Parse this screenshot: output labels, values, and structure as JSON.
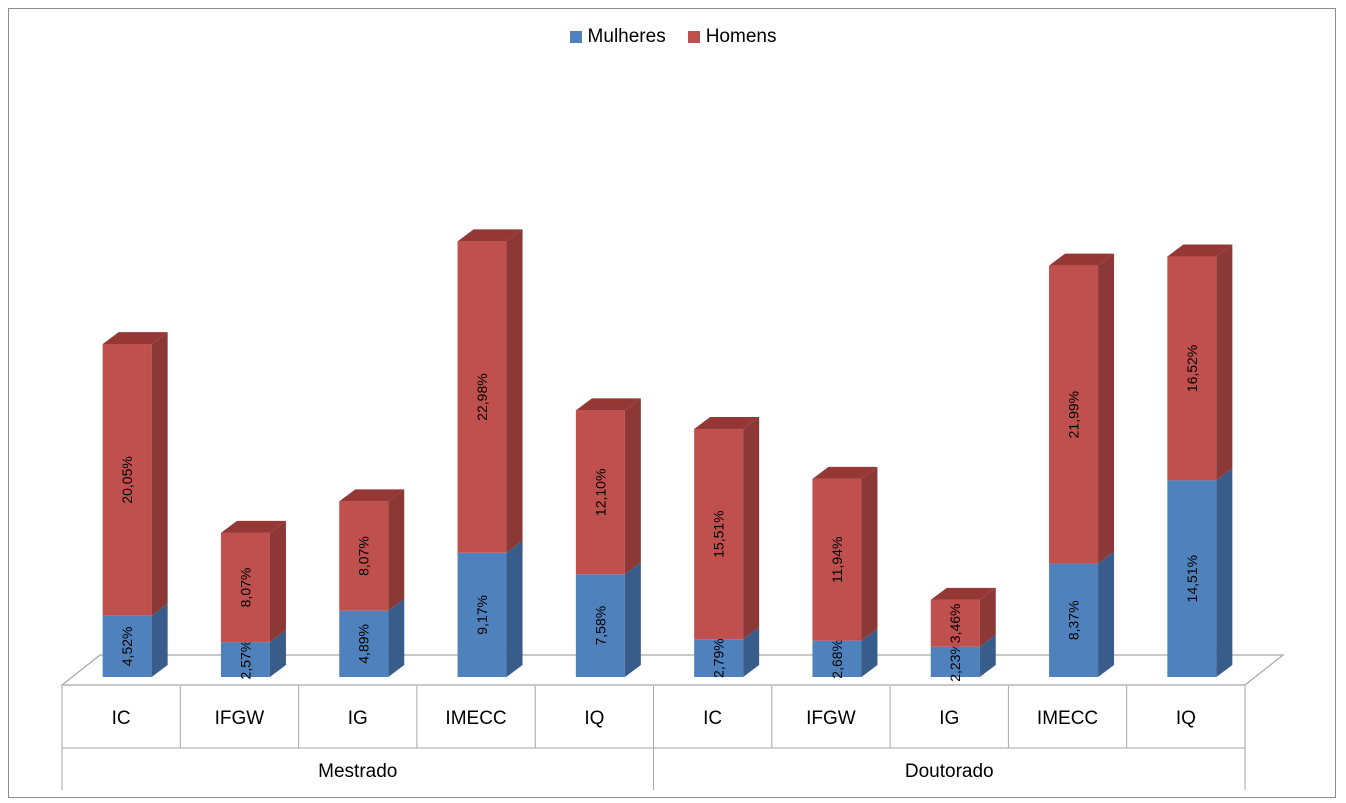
{
  "chart_data": {
    "type": "bar",
    "stacked": true,
    "three_d": true,
    "groups": [
      {
        "label": "Mestrado",
        "categories": [
          "IC",
          "IFGW",
          "IG",
          "IMECC",
          "IQ"
        ]
      },
      {
        "label": "Doutorado",
        "categories": [
          "IC",
          "IFGW",
          "IG",
          "IMECC",
          "IQ"
        ]
      }
    ],
    "categories": [
      "IC",
      "IFGW",
      "IG",
      "IMECC",
      "IQ",
      "IC",
      "IFGW",
      "IG",
      "IMECC",
      "IQ"
    ],
    "series": [
      {
        "name": "Mulheres",
        "color": "#4f81bd",
        "side_color": "#385d8a",
        "top_color": "#6f97c9",
        "values": [
          4.52,
          2.57,
          4.89,
          9.17,
          7.58,
          2.79,
          2.68,
          2.23,
          8.37,
          14.51
        ],
        "labels": [
          "4,52%",
          "2,57%",
          "4,89%",
          "9,17%",
          "7,58%",
          "2,79%",
          "2,68%",
          "2,23%",
          "8,37%",
          "14,51%"
        ]
      },
      {
        "name": "Homens",
        "color": "#c0504d",
        "side_color": "#8c3836",
        "top_color": "#953735",
        "values": [
          20.05,
          8.07,
          8.07,
          22.98,
          12.1,
          15.51,
          11.94,
          3.46,
          21.99,
          16.52
        ],
        "labels": [
          "20,05%",
          "8,07%",
          "8,07%",
          "22,98%",
          "12,10%",
          "15,51%",
          "11,94%",
          "3,46%",
          "21,99%",
          "16,52%"
        ]
      }
    ],
    "title": "",
    "xlabel": "",
    "ylabel": "",
    "legend_position": "top-center",
    "grid": false
  }
}
